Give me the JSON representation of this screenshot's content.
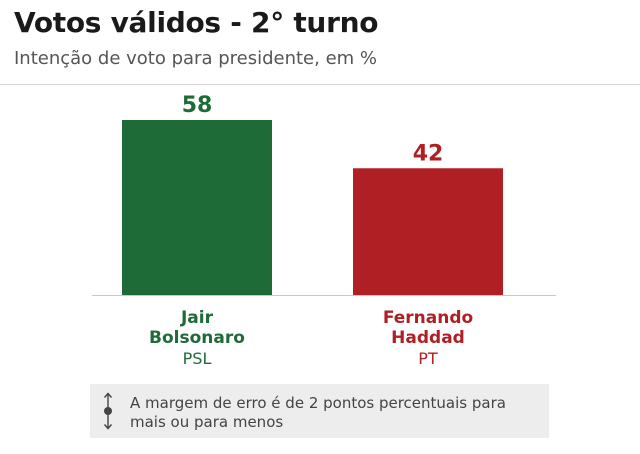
{
  "header": {
    "title": "Votos válidos - 2° turno",
    "subtitle": "Intenção de voto para presidente, em %"
  },
  "colors": {
    "series_1": "#1e6b37",
    "series_2": "#b01f24",
    "baseline": "#c8c8c8",
    "note_background": "#ededed"
  },
  "chart_data": {
    "type": "bar",
    "title": "Votos válidos - 2° turno",
    "subtitle": "Intenção de voto para presidente, em %",
    "categories": [
      "Jair Bolsonaro",
      "Fernando Haddad"
    ],
    "category_lines": [
      [
        "Jair",
        "Bolsonaro"
      ],
      [
        "Fernando",
        "Haddad"
      ]
    ],
    "parties": [
      "PSL",
      "PT"
    ],
    "values": [
      58,
      42
    ],
    "value_labels": [
      "58",
      "42"
    ],
    "colors": [
      "#1e6b37",
      "#b01f24"
    ],
    "ylim": [
      0,
      58
    ],
    "grid": false,
    "xlabel": "",
    "ylabel": ""
  },
  "note": {
    "icon": "up-down-arrow-icon",
    "text": "A margem de erro é de 2 pontos percentuais para mais ou para menos"
  }
}
